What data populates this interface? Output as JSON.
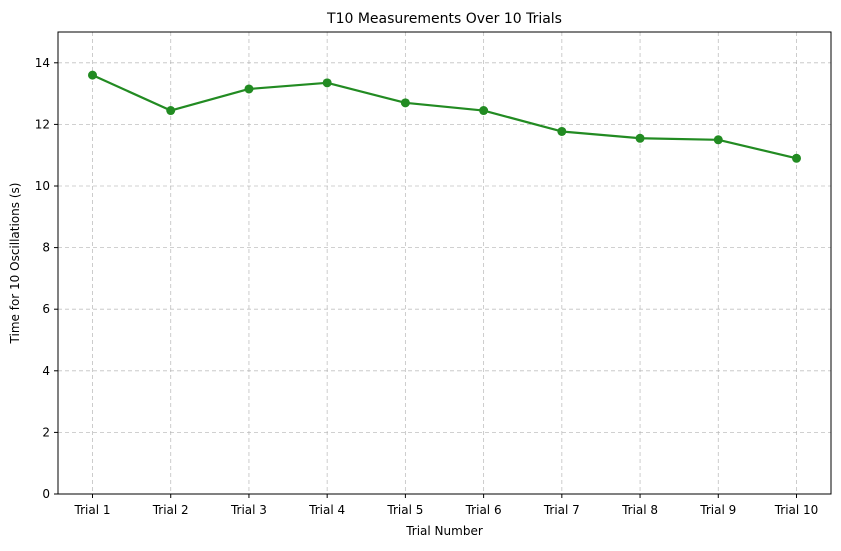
{
  "chart_data": {
    "type": "line",
    "title": "T10 Measurements Over 10 Trials",
    "xlabel": "Trial Number",
    "ylabel": "Time for 10 Oscillations (s)",
    "categories": [
      "Trial 1",
      "Trial 2",
      "Trial 3",
      "Trial 4",
      "Trial 5",
      "Trial 6",
      "Trial 7",
      "Trial 8",
      "Trial 9",
      "Trial 10"
    ],
    "series": [
      {
        "values": [
          13.6,
          12.45,
          13.15,
          13.35,
          12.7,
          12.45,
          11.77,
          11.55,
          11.5,
          10.9
        ],
        "color": "#228b22",
        "marker": "circle"
      }
    ],
    "ylim": [
      0,
      15
    ],
    "yticks": [
      0,
      2,
      4,
      6,
      8,
      10,
      12,
      14
    ],
    "grid": true,
    "grid_style": "dashed",
    "legend": "none"
  }
}
